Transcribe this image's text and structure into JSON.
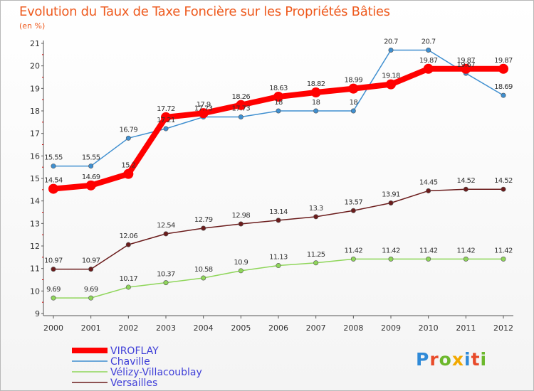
{
  "title": "Evolution du Taux de Taxe Foncière sur les Propriétés Bâties",
  "subtitle": "(en %)",
  "logo": {
    "text": "Proxiti",
    "colors": [
      "#2f8ad8",
      "#e84b2a",
      "#6cb82c",
      "#f2a900",
      "#2f8ad8",
      "#e84b2a",
      "#6cb82c"
    ]
  },
  "chart_data": {
    "type": "line",
    "x": [
      2000,
      2001,
      2002,
      2003,
      2004,
      2005,
      2006,
      2007,
      2008,
      2009,
      2010,
      2011,
      2012
    ],
    "ylim": [
      9,
      21
    ],
    "yticks": [
      9,
      10,
      11,
      12,
      13,
      14,
      15,
      16,
      17,
      18,
      19,
      20,
      21
    ],
    "grid": false,
    "legend": "bottom-left",
    "series": [
      {
        "name": "VIROFLAY",
        "color": "#ff0000",
        "values": [
          14.54,
          14.69,
          15.2,
          17.72,
          17.9,
          18.26,
          18.63,
          18.82,
          18.99,
          19.18,
          19.87,
          19.87,
          19.87
        ],
        "labels": [
          "14.54",
          "14.69",
          "15.2",
          "17.72",
          "17.9",
          "18.26",
          "18.63",
          "18.82",
          "18.99",
          "19.18",
          "19.87",
          "19.87",
          "19.87"
        ]
      },
      {
        "name": "Chaville",
        "color": "#3f8fd0",
        "values": [
          15.55,
          15.55,
          16.79,
          17.21,
          17.73,
          17.73,
          18,
          18,
          18,
          20.7,
          20.7,
          19.67,
          18.69
        ],
        "labels": [
          "15.55",
          "15.55",
          "16.79",
          "17.21",
          "17.73",
          "17.73",
          "18",
          "18",
          "18",
          "20.7",
          "20.7",
          "19.67",
          "18.69"
        ]
      },
      {
        "name": "Vélizy-Villacoublay",
        "color": "#8fd65a",
        "values": [
          9.69,
          9.69,
          10.17,
          10.37,
          10.58,
          10.9,
          11.13,
          11.25,
          11.42,
          11.42,
          11.42,
          11.42,
          11.42
        ],
        "labels": [
          "9.69",
          "9.69",
          "10.17",
          "10.37",
          "10.58",
          "10.9",
          "11.13",
          "11.25",
          "11.42",
          "11.42",
          "11.42",
          "11.42",
          "11.42"
        ]
      },
      {
        "name": "Versailles",
        "color": "#6b1c1c",
        "values": [
          10.97,
          10.97,
          12.06,
          12.54,
          12.79,
          12.98,
          13.14,
          13.3,
          13.57,
          13.91,
          14.45,
          14.52,
          14.52
        ],
        "labels": [
          "10.97",
          "10.97",
          "12.06",
          "12.54",
          "12.79",
          "12.98",
          "13.14",
          "13.3",
          "13.57",
          "13.91",
          "14.45",
          "14.52",
          "14.52"
        ]
      }
    ]
  }
}
